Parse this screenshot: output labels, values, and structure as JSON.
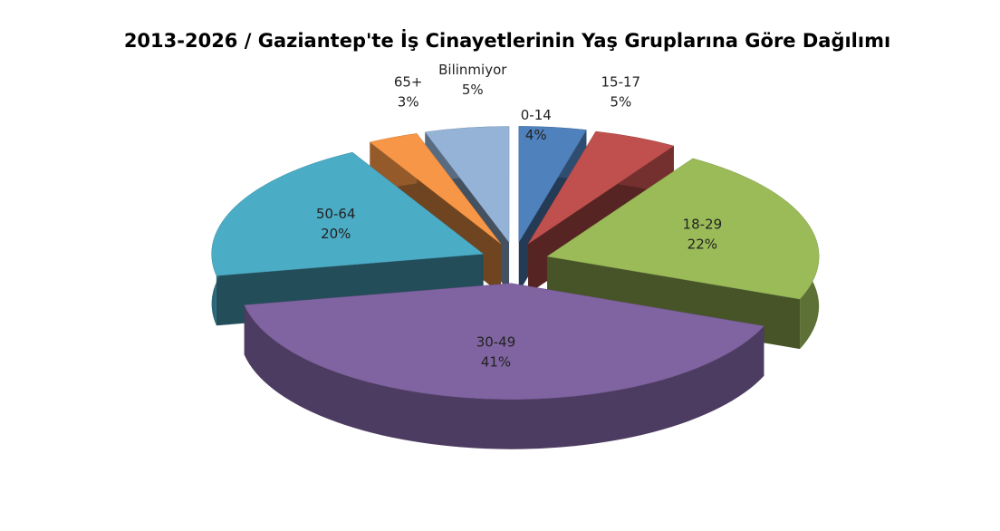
{
  "chart_data": {
    "type": "pie",
    "title": "2013-2026 / Gaziantep'te İş Cinayetlerinin Yaş Gruplarına Göre Dağılımı",
    "categories": [
      "0-14",
      "15-17",
      "18-29",
      "30-49",
      "50-64",
      "65+",
      "Bilinmiyor"
    ],
    "values": [
      4,
      5,
      22,
      41,
      20,
      3,
      5
    ],
    "value_labels": [
      "4%",
      "5%",
      "22%",
      "41%",
      "20%",
      "3%",
      "5%"
    ],
    "colors": [
      "#4f81bd",
      "#c0504d",
      "#9bbb59",
      "#8064a2",
      "#4bacc6",
      "#f79646",
      "#95b3d7"
    ]
  }
}
